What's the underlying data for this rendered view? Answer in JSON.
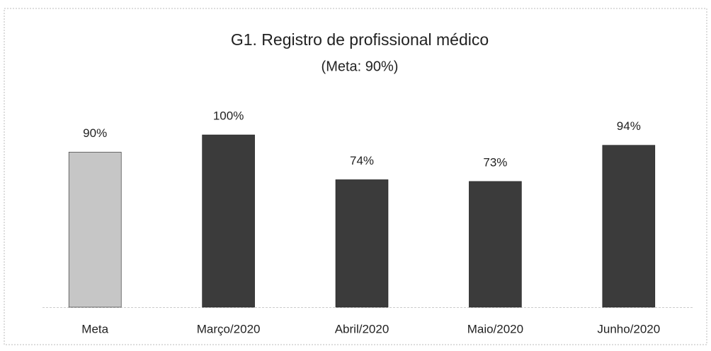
{
  "chart_data": {
    "type": "bar",
    "title": "G1. Registro de profissional médico",
    "subtitle": "(Meta: 90%)",
    "categories": [
      "Meta",
      "Março/2020",
      "Abril/2020",
      "Maio/2020",
      "Junho/2020"
    ],
    "values": [
      90,
      100,
      74,
      73,
      94
    ],
    "value_labels": [
      "90%",
      "100%",
      "74%",
      "73%",
      "94%"
    ],
    "colors": [
      "#c6c6c6",
      "#3b3b3b",
      "#3b3b3b",
      "#3b3b3b",
      "#3b3b3b"
    ]
  }
}
